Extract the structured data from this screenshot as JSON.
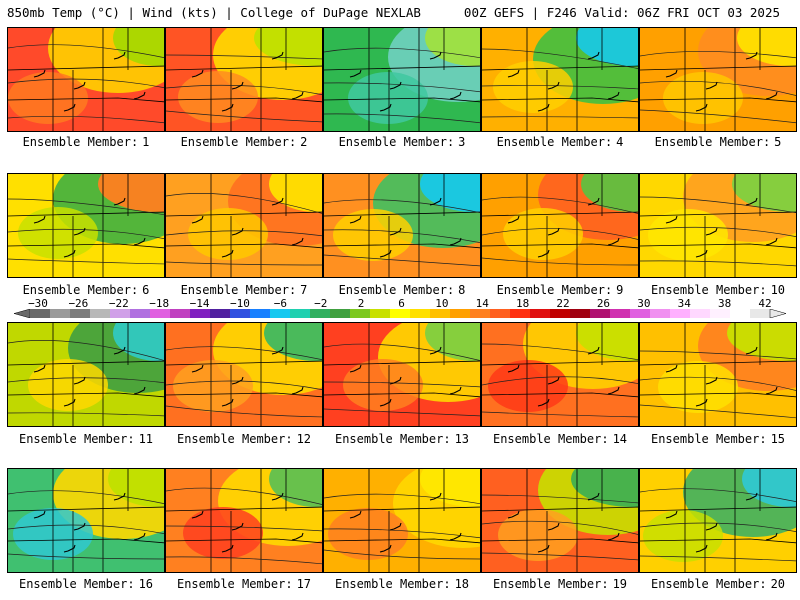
{
  "header": {
    "left_title": "850mb Temp (°C) | Wind (kts) | College of DuPage NEXLAB",
    "right_title": "00Z GEFS | F246 Valid: 06Z FRI OCT 03 2025"
  },
  "caption_label": "Ensemble Member:",
  "members": [
    {
      "number": 1,
      "palette": [
        "#ff4a2a",
        "#ff7a20",
        "#ffd000",
        "#a8d800"
      ]
    },
    {
      "number": 2,
      "palette": [
        "#ff5424",
        "#ff8c20",
        "#ffdc00",
        "#c0e000"
      ]
    },
    {
      "number": 3,
      "palette": [
        "#2fb850",
        "#40c8a0",
        "#70d0c0",
        "#a0e040"
      ]
    },
    {
      "number": 4,
      "palette": [
        "#ffb000",
        "#ffd000",
        "#40c040",
        "#1ac8e0"
      ]
    },
    {
      "number": 5,
      "palette": [
        "#ffa000",
        "#ffc800",
        "#ff8c20",
        "#ffe000"
      ]
    },
    {
      "number": 6,
      "palette": [
        "#ffe000",
        "#c8e000",
        "#40b040",
        "#ff8020"
      ]
    },
    {
      "number": 7,
      "palette": [
        "#ffa020",
        "#ffc800",
        "#ff7020",
        "#ffe000"
      ]
    },
    {
      "number": 8,
      "palette": [
        "#ff9020",
        "#ffd000",
        "#40c060",
        "#18c8e8"
      ]
    },
    {
      "number": 9,
      "palette": [
        "#ffa000",
        "#ffd000",
        "#ff6020",
        "#60c040"
      ]
    },
    {
      "number": 10,
      "palette": [
        "#ffd800",
        "#ffe800",
        "#ffa020",
        "#80d040"
      ]
    },
    {
      "number": 11,
      "palette": [
        "#c0d800",
        "#ffd800",
        "#40a040",
        "#30c8c0"
      ]
    },
    {
      "number": 12,
      "palette": [
        "#ff7020",
        "#ffa020",
        "#ffd800",
        "#40b860"
      ]
    },
    {
      "number": 13,
      "palette": [
        "#ff4020",
        "#ff8020",
        "#ffd800",
        "#80d040"
      ]
    },
    {
      "number": 14,
      "palette": [
        "#ff7020",
        "#ff3818",
        "#ffd000",
        "#c8e000"
      ]
    },
    {
      "number": 15,
      "palette": [
        "#ffc000",
        "#ffe000",
        "#ff8020",
        "#c8e000"
      ]
    },
    {
      "number": 16,
      "palette": [
        "#40c070",
        "#30c8d0",
        "#ffd800",
        "#c0e000"
      ]
    },
    {
      "number": 17,
      "palette": [
        "#ff8020",
        "#ff4020",
        "#ffd800",
        "#60c050"
      ]
    },
    {
      "number": 18,
      "palette": [
        "#ffb000",
        "#ff8020",
        "#ffd800",
        "#ffe800"
      ]
    },
    {
      "number": 19,
      "palette": [
        "#ff6020",
        "#ffa020",
        "#c8e000",
        "#40b050"
      ]
    },
    {
      "number": 20,
      "palette": [
        "#ffd000",
        "#c8e000",
        "#40b060",
        "#30c8d0"
      ]
    }
  ],
  "colorbar": {
    "labels": [
      "−30",
      "−26",
      "−22",
      "−18",
      "−14",
      "−10",
      "−6",
      "−2",
      "2",
      "6",
      "10",
      "14",
      "18",
      "22",
      "26",
      "30",
      "34",
      "38",
      "42"
    ],
    "colors": [
      "#6a6a6a",
      "#9a9a9a",
      "#7c7c7c",
      "#b8b8b8",
      "#d0a0e8",
      "#b070e0",
      "#e060e0",
      "#c040c0",
      "#8020c0",
      "#5020a0",
      "#3050e0",
      "#1880ff",
      "#18c8f0",
      "#20d0b0",
      "#30b060",
      "#40a040",
      "#7cc820",
      "#c8e000",
      "#ffff00",
      "#ffe000",
      "#ffc000",
      "#ffa000",
      "#ff8020",
      "#ff6020",
      "#ff3010",
      "#e01010",
      "#c00000",
      "#a00010",
      "#b01070",
      "#d030b0",
      "#e060e0",
      "#f090f0",
      "#ffb0ff",
      "#ffd8ff",
      "#fff0ff",
      "#ffffff",
      "#e8e8e8"
    ]
  }
}
